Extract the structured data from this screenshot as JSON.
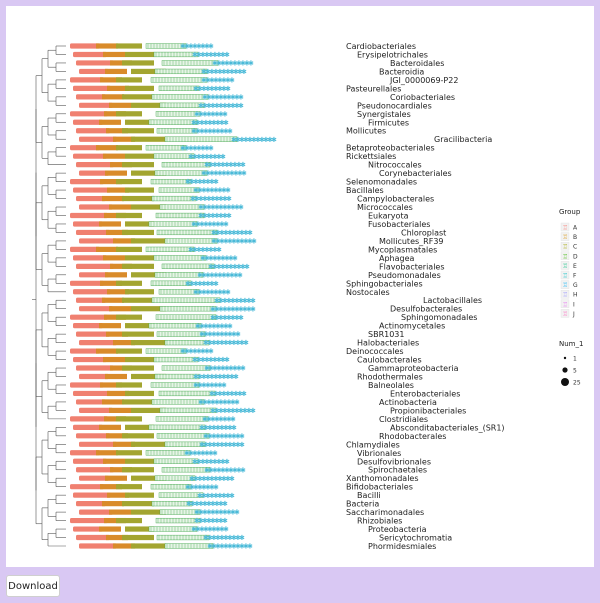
{
  "chart_data": {
    "type": "tree",
    "title": "",
    "leaves": [
      "Cardiobacteriales",
      "Erysipelotrichales",
      "Bacteroidales",
      "Bacteroidia",
      "JGI_0000069-P22",
      "Pasteurellales",
      "Coriobacteriales",
      "Pseudonocardiales",
      "Synergistales",
      "Firmicutes",
      "Mollicutes",
      "Gracilibacteria",
      "Betaproteobacteriales",
      "Rickettsiales",
      "Nitrococcales",
      "Corynebacteriales",
      "Selenomonadales",
      "Bacillales",
      "Campylobacterales",
      "Micrococcales",
      "Eukaryota",
      "Fusobacteriales",
      "Chloroplast",
      "Mollicutes_RF39",
      "Mycoplasmatales",
      "Aphagea",
      "Flavobacteriales",
      "Pseudomonadales",
      "Sphingobacteriales",
      "Nostocales",
      "Lactobacillales",
      "Desulfobacterales",
      "Sphingomonadales",
      "Actinomycetales",
      "SBR1031",
      "Halobacteriales",
      "Deinococcales",
      "Caulobacterales",
      "Gammaproteobacteria",
      "Rhodothermales",
      "Balneolales",
      "Enterobacteriales",
      "Actinobacteria",
      "Propionibacteriales",
      "Clostridiales",
      "Absconditabacteriales_(SR1)",
      "Rhodobacterales",
      "Chlamydiales",
      "Vibrionales",
      "Desulfovibrionales",
      "Spirochaetales",
      "Xanthomonadales",
      "Bifidobacteriales",
      "Bacilli",
      "Bacteria",
      "Saccharimonadales",
      "Rhizobiales",
      "Proteobacteria",
      "Sericytochromatia",
      "Phormidesmiales"
    ],
    "label_offsets": [
      0,
      1,
      4,
      3,
      4,
      0,
      4,
      1,
      1,
      2,
      0,
      8,
      0,
      0,
      2,
      3,
      0,
      0,
      1,
      1,
      2,
      2,
      5,
      3,
      2,
      3,
      3,
      2,
      0,
      0,
      7,
      4,
      5,
      3,
      2,
      1,
      0,
      1,
      2,
      1,
      2,
      4,
      3,
      4,
      3,
      4,
      3,
      0,
      1,
      1,
      2,
      0,
      0,
      1,
      0,
      0,
      1,
      2,
      3,
      2
    ],
    "legend_group": {
      "title": "Group",
      "items": [
        "A",
        "B",
        "C",
        "D",
        "E",
        "F",
        "G",
        "H",
        "I",
        "J"
      ],
      "colors": [
        "#f8766d",
        "#d89000",
        "#a3a500",
        "#39b600",
        "#00bf7d",
        "#00bfc4",
        "#00b0f6",
        "#9590ff",
        "#e76bf3",
        "#ff62bc"
      ]
    },
    "legend_size": {
      "title": "Num_1",
      "items": [
        "1",
        "5",
        "25"
      ]
    }
  },
  "ui": {
    "download_label": "Download"
  }
}
